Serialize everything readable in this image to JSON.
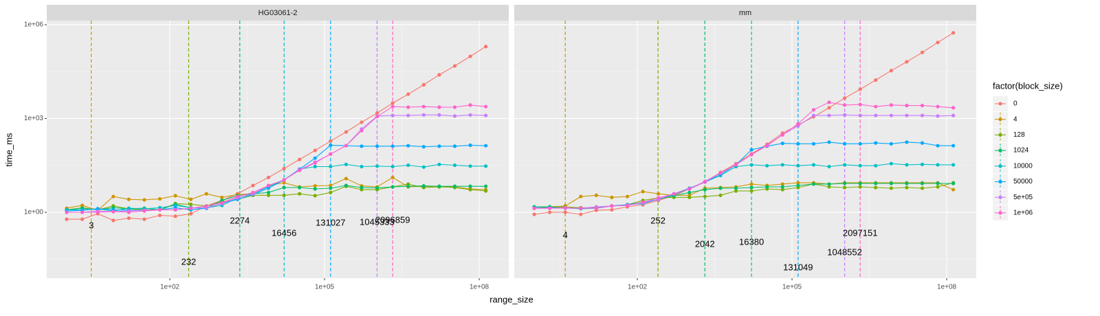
{
  "shared": {
    "x_label": "range_size",
    "y_label": "time_ms",
    "legend_title": "factor(block_size)"
  },
  "chart_data": [
    {
      "type": "line",
      "title": "HG03061-2",
      "log_x": true,
      "log_y": true,
      "grid": true,
      "xlim": [
        0.41,
        374000000
      ],
      "ylim": [
        0.0078,
        1350000
      ],
      "xticks": [
        {
          "value": 100,
          "label": "1e+02"
        },
        {
          "value": 100000,
          "label": "1e+05"
        },
        {
          "value": 100000000,
          "label": "1e+08"
        }
      ],
      "yticks": [
        {
          "value": 1,
          "label": "1e+00"
        },
        {
          "value": 1000,
          "label": "1e+03"
        },
        {
          "value": 1000000,
          "label": "1e+06"
        }
      ],
      "x": [
        1,
        2,
        4,
        8,
        16,
        32,
        64,
        128,
        256,
        512,
        1024,
        2048,
        4096,
        8192,
        16384,
        32768,
        65536,
        131072,
        262144,
        524288,
        1048576,
        2097152,
        4194304,
        8388608,
        16777216,
        33554432,
        67108864,
        134217728
      ],
      "series": [
        {
          "name": "0",
          "color": "#F8766D",
          "values": [
            0.6,
            0.6,
            0.9,
            0.55,
            0.65,
            0.6,
            0.8,
            0.75,
            0.9,
            1.6,
            2.4,
            3.9,
            7.2,
            13,
            25,
            49,
            95,
            190,
            370,
            760,
            1500,
            3100,
            6000,
            12000,
            25000,
            48000,
            97000,
            200000
          ]
        },
        {
          "name": "4",
          "color": "#CD9600",
          "vline": 3,
          "values": [
            1.35,
            1.66,
            1.16,
            3.2,
            2.6,
            2.5,
            2.7,
            3.4,
            2.6,
            3.9,
            3,
            3.7,
            3.9,
            7.2,
            8.8,
            6.5,
            7,
            7.2,
            12,
            7,
            6.5,
            13,
            6.5,
            6.8,
            6.5,
            6.5,
            5.6,
            5.3
          ]
        },
        {
          "name": "128",
          "color": "#7CAE00",
          "vline": 232,
          "values": [
            1.2,
            1.4,
            1.2,
            1.6,
            1.3,
            1.2,
            1.2,
            1.9,
            1.8,
            1.6,
            2.2,
            2.6,
            3.5,
            3.5,
            3.5,
            3.9,
            3.4,
            4.3,
            6.8,
            5.3,
            5.3,
            6.5,
            8,
            6.2,
            6.5,
            6.2,
            5.3,
            4.8
          ]
        },
        {
          "name": "1024",
          "color": "#00BE67",
          "vline": 2274,
          "values": [
            1.2,
            1.35,
            1.2,
            1.4,
            1.3,
            1.35,
            1.2,
            1.8,
            1.4,
            1.35,
            2.4,
            3.4,
            3.9,
            4.3,
            6.2,
            6.2,
            5.6,
            5.9,
            7.2,
            6.2,
            6,
            6.5,
            6.8,
            7,
            6.8,
            6.8,
            6.8,
            6.8
          ]
        },
        {
          "name": "10000",
          "color": "#00BFC4",
          "vline": 16456,
          "values": [
            1.2,
            1.2,
            1.3,
            1.1,
            1.35,
            1.3,
            1.4,
            1.66,
            1.4,
            1.4,
            1.66,
            2.9,
            3.9,
            6.5,
            10.8,
            24,
            29,
            29,
            34,
            29,
            30,
            29,
            32,
            28,
            34,
            32,
            30,
            30
          ]
        },
        {
          "name": "50000",
          "color": "#00A9FF",
          "vline": 131027,
          "values": [
            1.1,
            1.16,
            1.3,
            1.2,
            1.16,
            1.16,
            1.2,
            1.4,
            1.2,
            1.35,
            1.9,
            2.6,
            3.7,
            5.9,
            10.8,
            24,
            54,
            140,
            135,
            130,
            130,
            130,
            135,
            125,
            130,
            130,
            140,
            135
          ]
        },
        {
          "name": "5e+05",
          "color": "#C77CFF",
          "vline": 1045333,
          "values": [
            1,
            1,
            1.1,
            1.05,
            1.1,
            1.16,
            1.2,
            1.2,
            1.35,
            1.4,
            1.9,
            2.9,
            3.9,
            7.2,
            10.8,
            23,
            40,
            73,
            135,
            460,
            1200,
            1250,
            1250,
            1300,
            1300,
            1200,
            1300,
            1250
          ]
        },
        {
          "name": "1e+06",
          "color": "#FF61CC",
          "vline": 2096859,
          "values": [
            1,
            1,
            1,
            1.05,
            1,
            1.1,
            1.2,
            1.2,
            1.35,
            1.6,
            2,
            3.2,
            4.3,
            7.2,
            10.8,
            22,
            38,
            73,
            135,
            410,
            1150,
            2400,
            2300,
            2400,
            2300,
            2300,
            2700,
            2400
          ]
        }
      ]
    },
    {
      "type": "line",
      "title": "mm",
      "log_x": true,
      "log_y": true,
      "grid": true,
      "xlim": [
        0.41,
        374000000
      ],
      "ylim": [
        0.0078,
        1350000
      ],
      "xticks": [
        {
          "value": 100,
          "label": "1e+02"
        },
        {
          "value": 100000,
          "label": "1e+05"
        },
        {
          "value": 100000000,
          "label": "1e+08"
        }
      ],
      "yticks": [
        {
          "value": 1,
          "label": "1e+00"
        },
        {
          "value": 1000,
          "label": "1e+03"
        },
        {
          "value": 1000000,
          "label": "1e+06"
        }
      ],
      "x": [
        1,
        2,
        4,
        8,
        16,
        32,
        64,
        128,
        256,
        512,
        1024,
        2048,
        4096,
        8192,
        16384,
        32768,
        65536,
        131072,
        262144,
        524288,
        1048576,
        2097152,
        4194304,
        8388608,
        16777216,
        33554432,
        67108864,
        134217728
      ],
      "series": [
        {
          "name": "0",
          "color": "#F8766D",
          "values": [
            0.86,
            1,
            1,
            0.86,
            1.16,
            1.2,
            1.5,
            1.75,
            2.4,
            3.4,
            5.6,
            9.3,
            19,
            36,
            74,
            150,
            340,
            620,
            1130,
            2200,
            4500,
            8600,
            17000,
            34000,
            65000,
            130000,
            270000,
            550000
          ]
        },
        {
          "name": "4",
          "color": "#CD9600",
          "vline": 4,
          "values": [
            1.35,
            1.5,
            1.6,
            3.2,
            3.5,
            3,
            3.2,
            4.6,
            3.9,
            3.5,
            3.5,
            5.9,
            6.2,
            6.5,
            8,
            7.2,
            8,
            8.8,
            8.8,
            8,
            8.8,
            8.8,
            8.8,
            8.8,
            8.8,
            8.8,
            8.8,
            5.3
          ]
        },
        {
          "name": "128",
          "color": "#7CAE00",
          "vline": 252,
          "values": [
            1.35,
            1.4,
            1.5,
            1.4,
            1.4,
            1.6,
            1.75,
            2.4,
            2.9,
            3,
            3,
            3.2,
            3.5,
            4.8,
            4.8,
            5.6,
            5.3,
            6.2,
            8,
            6.5,
            6.2,
            6.5,
            6.2,
            5.9,
            6.2,
            5.9,
            6.5,
            8.8
          ]
        },
        {
          "name": "1024",
          "color": "#00BE67",
          "vline": 2042,
          "values": [
            1.5,
            1.5,
            1.4,
            1.35,
            1.4,
            1.6,
            1.75,
            2,
            2.6,
            3.4,
            4.3,
            5.3,
            5.9,
            5.9,
            6.2,
            6.5,
            6.5,
            7.2,
            8,
            8,
            8.4,
            8.4,
            8.4,
            8.4,
            8.4,
            8.4,
            8.4,
            8.4
          ]
        },
        {
          "name": "10000",
          "color": "#00BFC4",
          "vline": 16380,
          "values": [
            1.4,
            1.4,
            1.4,
            1.3,
            1.35,
            1.6,
            1.75,
            1.9,
            2.6,
            3.7,
            5.6,
            9.3,
            15,
            29,
            33,
            31,
            33,
            31,
            33,
            29,
            33,
            31,
            31,
            36,
            33,
            34,
            33,
            33
          ]
        },
        {
          "name": "50000",
          "color": "#00A9FF",
          "vline": 131049,
          "values": [
            1.4,
            1.4,
            1.35,
            1.35,
            1.35,
            1.6,
            1.75,
            2.1,
            2.6,
            3.9,
            5.9,
            9.3,
            16,
            33,
            100,
            130,
            160,
            155,
            155,
            175,
            155,
            155,
            165,
            155,
            175,
            165,
            135,
            135
          ]
        },
        {
          "name": "5e+05",
          "color": "#C77CFF",
          "vline": 1048552,
          "values": [
            1.35,
            1.35,
            1.35,
            1.35,
            1.5,
            1.6,
            1.66,
            2,
            2.6,
            3.9,
            5.6,
            9.8,
            18,
            33,
            70,
            140,
            300,
            580,
            1250,
            1250,
            1300,
            1250,
            1250,
            1250,
            1250,
            1250,
            1200,
            1250
          ]
        },
        {
          "name": "1e+06",
          "color": "#FF61CC",
          "vline": 2097151,
          "values": [
            1.35,
            1.35,
            1.4,
            1.35,
            1.35,
            1.6,
            1.66,
            2.1,
            2.9,
            3.9,
            5.6,
            9.3,
            18,
            33,
            70,
            135,
            300,
            680,
            1900,
            3300,
            2700,
            2800,
            2400,
            2700,
            2600,
            2600,
            2400,
            2200
          ]
        }
      ]
    }
  ]
}
